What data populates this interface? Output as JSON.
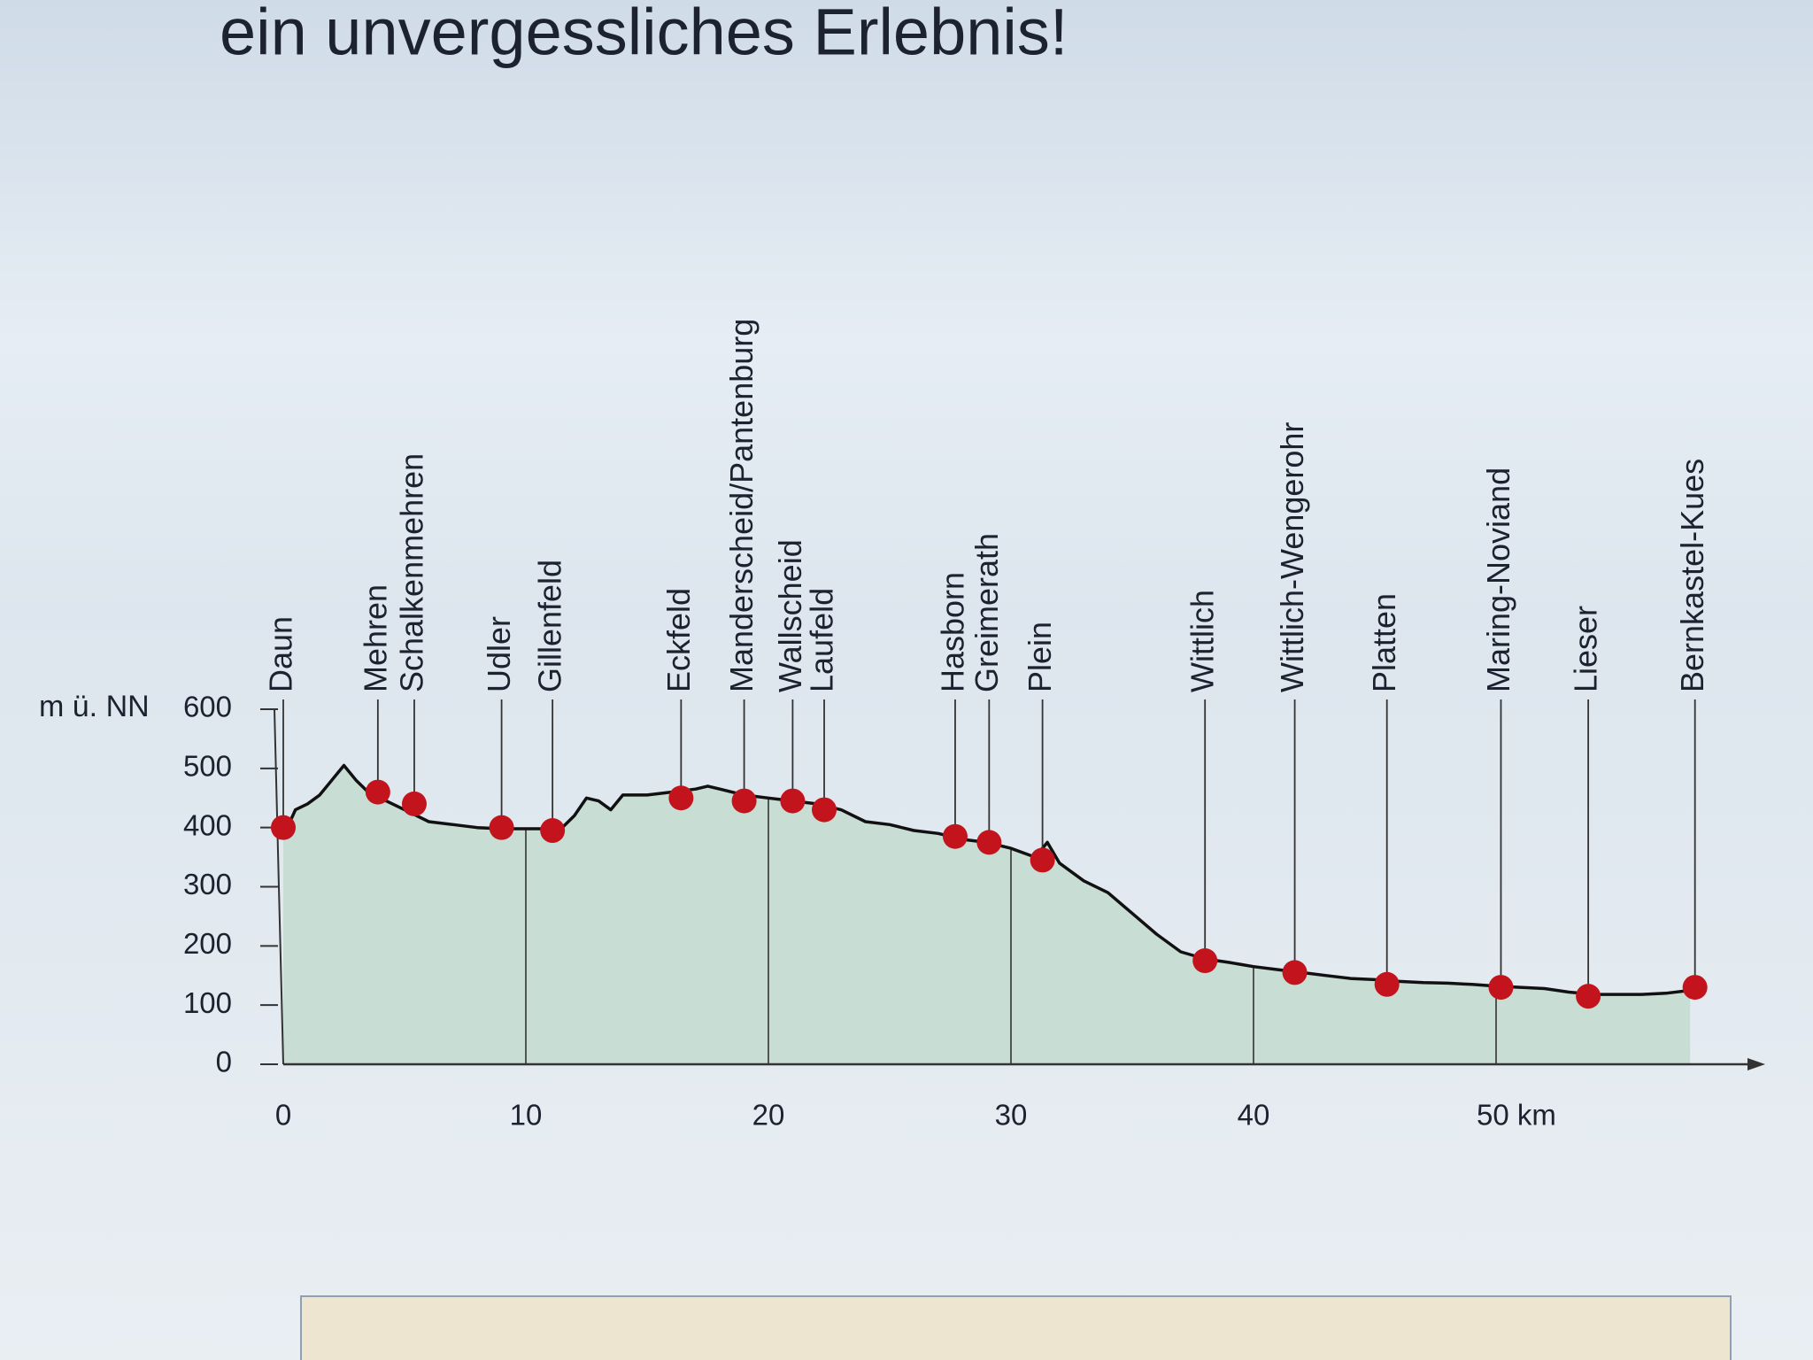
{
  "chart_data": {
    "type": "elevation-profile",
    "title": "ein unvergessliches Erlebnis!",
    "ylabel": "m ü. NN",
    "x": [
      0,
      0.5,
      1,
      1.5,
      2,
      2.5,
      3,
      3.5,
      4,
      5,
      6,
      7,
      8,
      9,
      10,
      11,
      11.5,
      12,
      12.5,
      13,
      13.5,
      14,
      15,
      16,
      17,
      17.5,
      18,
      19,
      20,
      21,
      22,
      23,
      24,
      25,
      26,
      27,
      28,
      29,
      30,
      31,
      31.5,
      32,
      33,
      34,
      35,
      36,
      37,
      38,
      39,
      40,
      41,
      42,
      43,
      44,
      45,
      46,
      47,
      48,
      49,
      50,
      51,
      52,
      53,
      54,
      55,
      56,
      57,
      58
    ],
    "values": [
      385,
      430,
      440,
      455,
      480,
      505,
      480,
      460,
      450,
      430,
      410,
      405,
      400,
      398,
      398,
      398,
      400,
      420,
      450,
      445,
      430,
      455,
      455,
      460,
      465,
      470,
      465,
      455,
      450,
      445,
      440,
      430,
      410,
      405,
      395,
      390,
      380,
      375,
      365,
      350,
      375,
      340,
      310,
      290,
      255,
      220,
      190,
      178,
      172,
      165,
      160,
      155,
      150,
      145,
      143,
      140,
      138,
      137,
      135,
      132,
      130,
      128,
      122,
      118,
      118,
      118,
      120,
      125
    ],
    "color": "#c8ddd4",
    "stations": [
      {
        "name": "Daun",
        "x": 0,
        "value": 400
      },
      {
        "name": "Mehren",
        "x": 3.9,
        "value": 460
      },
      {
        "name": "Schalkenmehren",
        "x": 5.4,
        "value": 440
      },
      {
        "name": "Udler",
        "x": 9,
        "value": 400
      },
      {
        "name": "Gillenfeld",
        "x": 11.1,
        "value": 395
      },
      {
        "name": "Eckfeld",
        "x": 16.4,
        "value": 450
      },
      {
        "name": "Manderscheid/Pantenburg",
        "x": 19,
        "value": 445
      },
      {
        "name": "Wallscheid",
        "x": 21,
        "value": 445
      },
      {
        "name": "Laufeld",
        "x": 22.3,
        "value": 430
      },
      {
        "name": "Hasborn",
        "x": 27.7,
        "value": 385
      },
      {
        "name": "Greimerath",
        "x": 29.1,
        "value": 375
      },
      {
        "name": "Plein",
        "x": 31.3,
        "value": 345
      },
      {
        "name": "Wittlich",
        "x": 38,
        "value": 175
      },
      {
        "name": "Wittlich-Wengerohr",
        "x": 41.7,
        "value": 155
      },
      {
        "name": "Platten",
        "x": 45.5,
        "value": 135
      },
      {
        "name": "Maring-Noviand",
        "x": 50.2,
        "value": 130
      },
      {
        "name": "Lieser",
        "x": 53.8,
        "value": 115
      },
      {
        "name": "Bernkastel-Kues",
        "x": 58.2,
        "value": 130
      }
    ],
    "station_color": "#c3141d",
    "xlim": [
      0,
      60
    ],
    "ylim": [
      0,
      600
    ],
    "xticks": [
      0,
      10,
      20,
      30,
      40,
      {
        "value": 50,
        "label": "50 km"
      }
    ],
    "yticks": [
      0,
      100,
      200,
      300,
      400,
      500,
      600
    ]
  }
}
